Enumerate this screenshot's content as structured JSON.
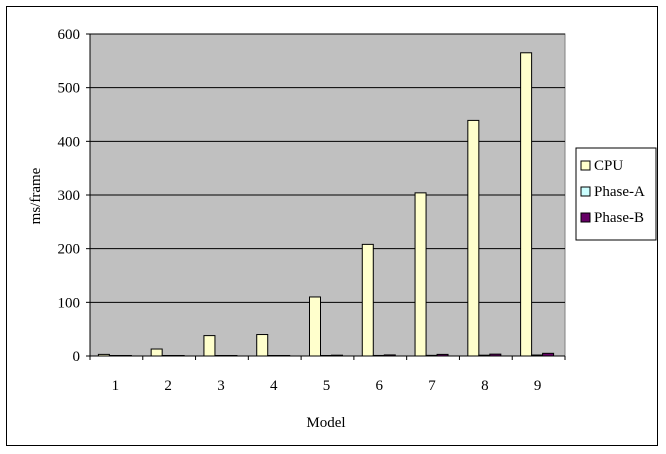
{
  "chart_data": {
    "type": "bar",
    "title": "",
    "xlabel": "Model",
    "ylabel": "ms/frame",
    "categories": [
      "1",
      "2",
      "3",
      "4",
      "5",
      "6",
      "7",
      "8",
      "9"
    ],
    "ylim": [
      0,
      600
    ],
    "yticks": [
      0,
      100,
      200,
      300,
      400,
      500,
      600
    ],
    "grid": true,
    "legend_position": "right",
    "series": [
      {
        "name": "CPU",
        "color": "#ffffcc",
        "values": [
          3,
          13,
          38,
          40,
          110,
          208,
          304,
          439,
          565
        ]
      },
      {
        "name": "Phase-A",
        "color": "#ccffff",
        "values": [
          0.3,
          0.4,
          0.5,
          0.5,
          0.8,
          1.0,
          1.2,
          1.5,
          1.8
        ]
      },
      {
        "name": "Phase-B",
        "color": "#660066",
        "values": [
          0.3,
          0.5,
          0.6,
          0.6,
          1.5,
          2.0,
          3.0,
          3.5,
          5.0
        ]
      }
    ],
    "plot_background": "#c0c0c0"
  }
}
